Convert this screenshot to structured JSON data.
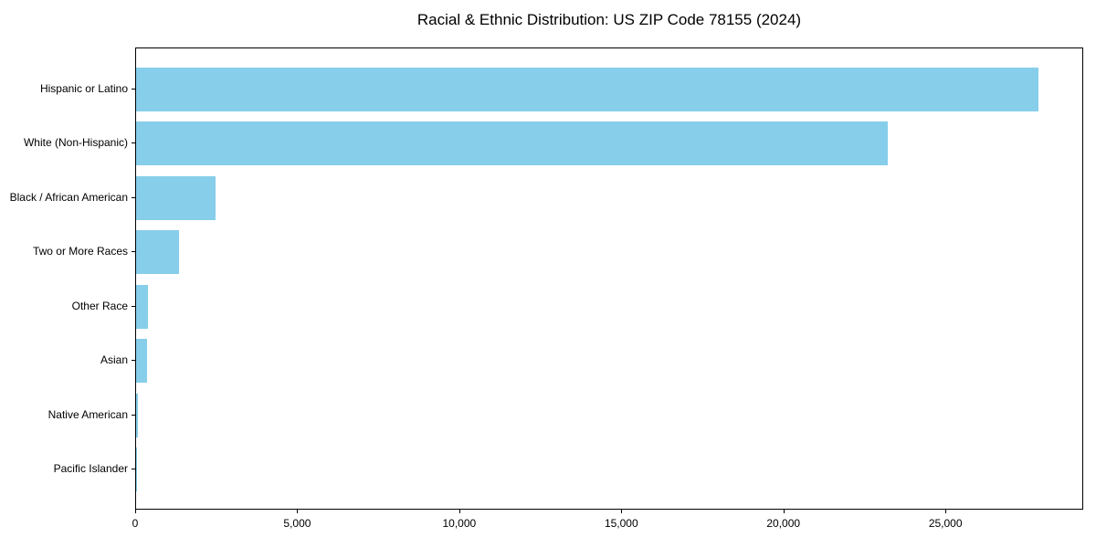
{
  "chart_data": {
    "type": "bar",
    "orientation": "horizontal",
    "title": "Racial & Ethnic Distribution: US ZIP Code 78155 (2024)",
    "categories": [
      "Hispanic or Latino",
      "White (Non-Hispanic)",
      "Black / African American",
      "Two or More Races",
      "Other Race",
      "Asian",
      "Native American",
      "Pacific Islander"
    ],
    "values": [
      27850,
      23200,
      2450,
      1330,
      370,
      350,
      60,
      25
    ],
    "xlabel": "",
    "ylabel": "",
    "xlim": [
      0,
      29250
    ],
    "xticks": [
      0,
      5000,
      10000,
      15000,
      20000,
      25000
    ],
    "xtick_labels": [
      "0",
      "5,000",
      "10,000",
      "15,000",
      "20,000",
      "25,000"
    ],
    "bar_color": "#87CEEB",
    "axis_color": "#000000",
    "background_color": "#ffffff",
    "grid": false,
    "legend": null
  }
}
